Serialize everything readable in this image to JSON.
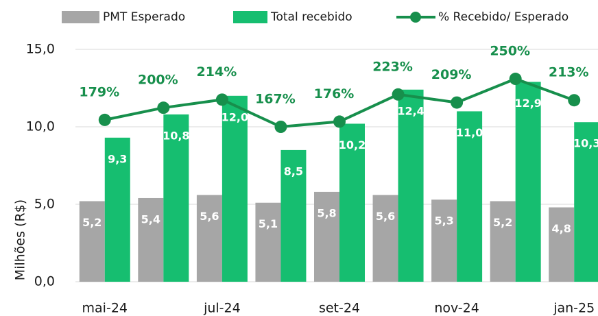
{
  "chart_data": {
    "type": "bar",
    "categories": [
      "mai-24",
      null,
      "jul-24",
      null,
      "set-24",
      null,
      "nov-24",
      null,
      "jan-25"
    ],
    "y_label": "Milhões (R$)",
    "series": [
      {
        "name": "PMT Esperado",
        "color": "#a6a6a6",
        "values": [
          5.2,
          5.4,
          5.6,
          5.1,
          5.8,
          5.6,
          5.3,
          5.2,
          4.8
        ],
        "value_labels": [
          "5,2",
          "5,4",
          "5,6",
          "5,1",
          "5,8",
          "5,6",
          "5,3",
          "5,2",
          "4,8"
        ]
      },
      {
        "name": "Total recebido",
        "color": "#16be70",
        "values": [
          9.3,
          10.8,
          12.0,
          8.5,
          10.2,
          12.4,
          11.0,
          12.9,
          10.3
        ],
        "value_labels": [
          "9,3",
          "10,8",
          "12,0",
          "8,5",
          "10,2",
          "12,4",
          "11,0",
          "12,9",
          "10,3"
        ]
      },
      {
        "name": "% Recebido/ Esperado",
        "color": "#178f4c",
        "type": "line",
        "axis": "y2",
        "values": [
          179,
          200,
          214,
          167,
          176,
          223,
          209,
          250,
          213
        ],
        "value_labels": [
          "179%",
          "200%",
          "214%",
          "167%",
          "176%",
          "223%",
          "209%",
          "250%",
          "213%"
        ]
      }
    ],
    "ylim": [
      0,
      15
    ],
    "yticks": [
      {
        "value": 0,
        "label": "0,0"
      },
      {
        "value": 5,
        "label": "5,0"
      },
      {
        "value": 10,
        "label": "10,0"
      },
      {
        "value": 15,
        "label": "15,0"
      }
    ],
    "y2lim": [
      -101,
      301
    ],
    "grid": true,
    "legend": "top"
  }
}
